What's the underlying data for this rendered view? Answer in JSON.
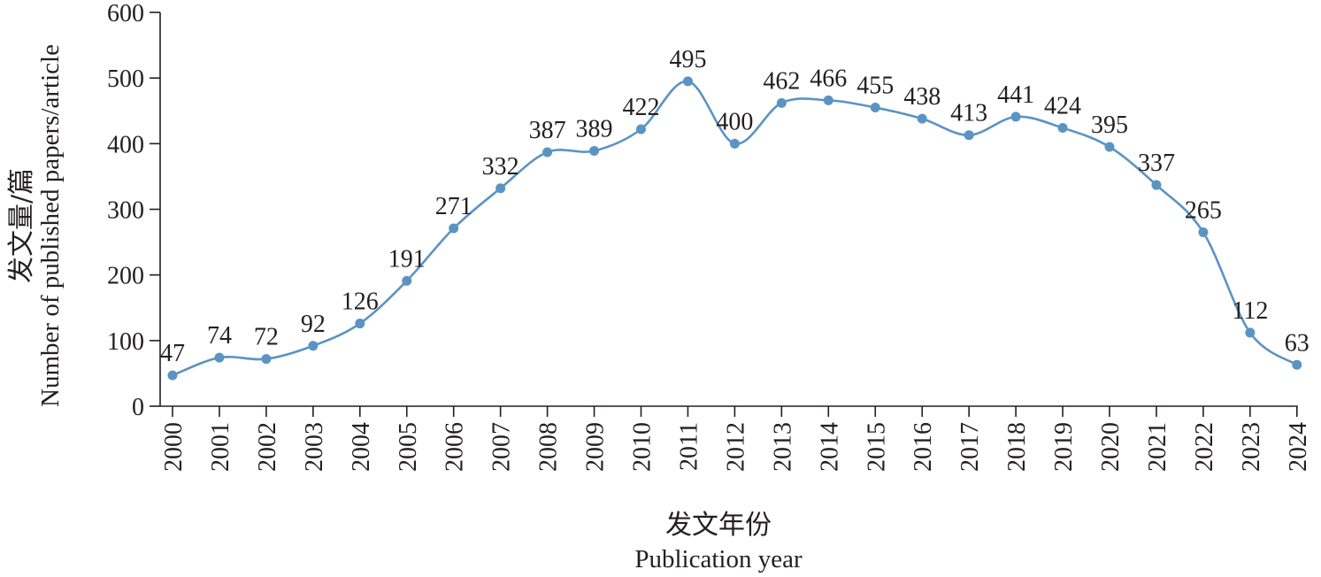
{
  "chart_data": {
    "type": "line",
    "smooth": true,
    "categories": [
      "2000",
      "2001",
      "2002",
      "2003",
      "2004",
      "2005",
      "2006",
      "2007",
      "2008",
      "2009",
      "2010",
      "2011",
      "2012",
      "2013",
      "2014",
      "2015",
      "2016",
      "2017",
      "2018",
      "2019",
      "2020",
      "2021",
      "2022",
      "2023",
      "2024"
    ],
    "values": [
      47,
      74,
      72,
      92,
      126,
      191,
      271,
      332,
      387,
      389,
      422,
      495,
      400,
      462,
      466,
      455,
      438,
      413,
      441,
      424,
      395,
      337,
      265,
      112,
      63
    ],
    "data_labels": [
      "47",
      "74",
      "72",
      "92",
      "126",
      "191",
      "271",
      "332",
      "387",
      "389",
      "422",
      "495",
      "400",
      "462",
      "466",
      "455",
      "438",
      "413",
      "441",
      "424",
      "395",
      "337",
      "265",
      "112",
      "63"
    ],
    "ylim": [
      0,
      600
    ],
    "yticks": [
      "0",
      "100",
      "200",
      "300",
      "400",
      "500",
      "600"
    ],
    "xlabel_cn": "发文年份",
    "xlabel_en": "Publication year",
    "ylabel_cn": "发文量/篇",
    "ylabel_en": "Number of published papers/article",
    "grid": false,
    "legend": "none",
    "line_color": "#5b93c3",
    "marker_color": "#5b93c3"
  }
}
